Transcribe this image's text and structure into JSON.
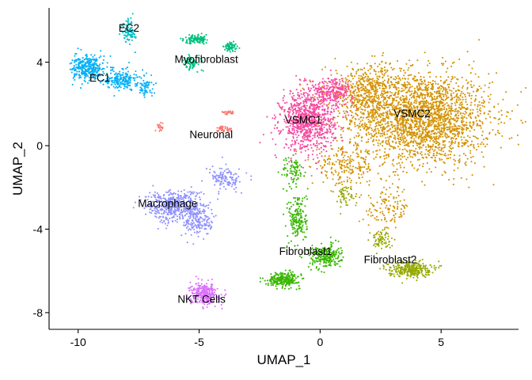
{
  "chart_data": {
    "type": "scatter",
    "xlabel": "UMAP_1",
    "ylabel": "UMAP_2",
    "xlim": [
      -11.2,
      8.2
    ],
    "ylim": [
      -8.8,
      6.6
    ],
    "xticks": [
      -10,
      -5,
      0,
      5
    ],
    "yticks": [
      -8,
      -4,
      0,
      4
    ],
    "xtick_labels": [
      "-10",
      "-5",
      "0",
      "5"
    ],
    "ytick_labels": [
      "-8",
      "-4",
      "0",
      "4"
    ],
    "grid": false,
    "legend": "none",
    "clusters": [
      {
        "label": "VSMC2",
        "color": "#D39200",
        "label_pos": [
          3.8,
          1.5
        ],
        "blobs": [
          [
            4.2,
            1.3,
            2.6,
            2.0,
            2300
          ],
          [
            2.0,
            2.6,
            1.6,
            1.2,
            500
          ],
          [
            1.0,
            -1.0,
            1.2,
            0.8,
            200
          ],
          [
            2.8,
            -3.0,
            0.8,
            1.0,
            120
          ]
        ]
      },
      {
        "label": "VSMC1",
        "color": "#F8499F",
        "label_pos": [
          -0.7,
          1.2
        ],
        "blobs": [
          [
            -0.5,
            1.2,
            1.0,
            1.3,
            900
          ],
          [
            0.5,
            2.6,
            0.8,
            0.6,
            250
          ]
        ]
      },
      {
        "label": "Fibroblast1",
        "color": "#39B600",
        "label_pos": [
          -0.6,
          -5.1
        ],
        "blobs": [
          [
            -1.5,
            -6.4,
            0.6,
            0.3,
            250
          ],
          [
            0.2,
            -5.3,
            0.6,
            0.5,
            250
          ],
          [
            -0.9,
            -3.5,
            0.35,
            1.2,
            180
          ],
          [
            -1.1,
            -1.2,
            0.4,
            0.6,
            80
          ]
        ]
      },
      {
        "label": "Fibroblast2",
        "color": "#95A900",
        "label_pos": [
          2.9,
          -5.5
        ],
        "blobs": [
          [
            3.7,
            -5.9,
            0.8,
            0.35,
            300
          ],
          [
            2.5,
            -4.5,
            0.4,
            0.4,
            70
          ],
          [
            1.0,
            -2.4,
            0.4,
            0.5,
            50
          ]
        ]
      },
      {
        "label": "Macrophage",
        "color": "#8F91FF",
        "label_pos": [
          -6.3,
          -2.8
        ],
        "blobs": [
          [
            -6.1,
            -2.9,
            1.0,
            0.7,
            450
          ],
          [
            -5.0,
            -3.5,
            0.6,
            0.8,
            200
          ],
          [
            -3.9,
            -1.6,
            0.6,
            0.5,
            120
          ]
        ]
      },
      {
        "label": "NKT Cells",
        "color": "#DB72FB",
        "label_pos": [
          -4.9,
          -7.4
        ],
        "blobs": [
          [
            -4.8,
            -7.1,
            0.5,
            0.45,
            330
          ]
        ]
      },
      {
        "label": "EC1",
        "color": "#00B0F6",
        "label_pos": [
          -9.1,
          3.2
        ],
        "blobs": [
          [
            -9.6,
            3.7,
            0.6,
            0.55,
            320
          ],
          [
            -8.2,
            3.2,
            0.6,
            0.45,
            200
          ],
          [
            -7.2,
            2.8,
            0.3,
            0.4,
            60
          ]
        ]
      },
      {
        "label": "EC2",
        "color": "#00BFC4",
        "label_pos": [
          -7.9,
          5.6
        ],
        "blobs": [
          [
            -7.9,
            5.5,
            0.25,
            0.6,
            90
          ]
        ]
      },
      {
        "label": "Myofibroblast",
        "color": "#00BF7D",
        "label_pos": [
          -4.7,
          4.1
        ],
        "blobs": [
          [
            -5.1,
            5.1,
            0.45,
            0.18,
            120
          ],
          [
            -5.3,
            4.0,
            0.35,
            0.3,
            80
          ],
          [
            -3.7,
            4.7,
            0.25,
            0.22,
            70
          ]
        ]
      },
      {
        "label": "Neuronal",
        "color": "#F8766D",
        "label_pos": [
          -4.5,
          0.5
        ],
        "blobs": [
          [
            -4.0,
            0.8,
            0.35,
            0.12,
            40
          ],
          [
            -6.6,
            0.9,
            0.12,
            0.2,
            20
          ],
          [
            -3.8,
            1.6,
            0.25,
            0.12,
            20
          ]
        ]
      }
    ]
  }
}
